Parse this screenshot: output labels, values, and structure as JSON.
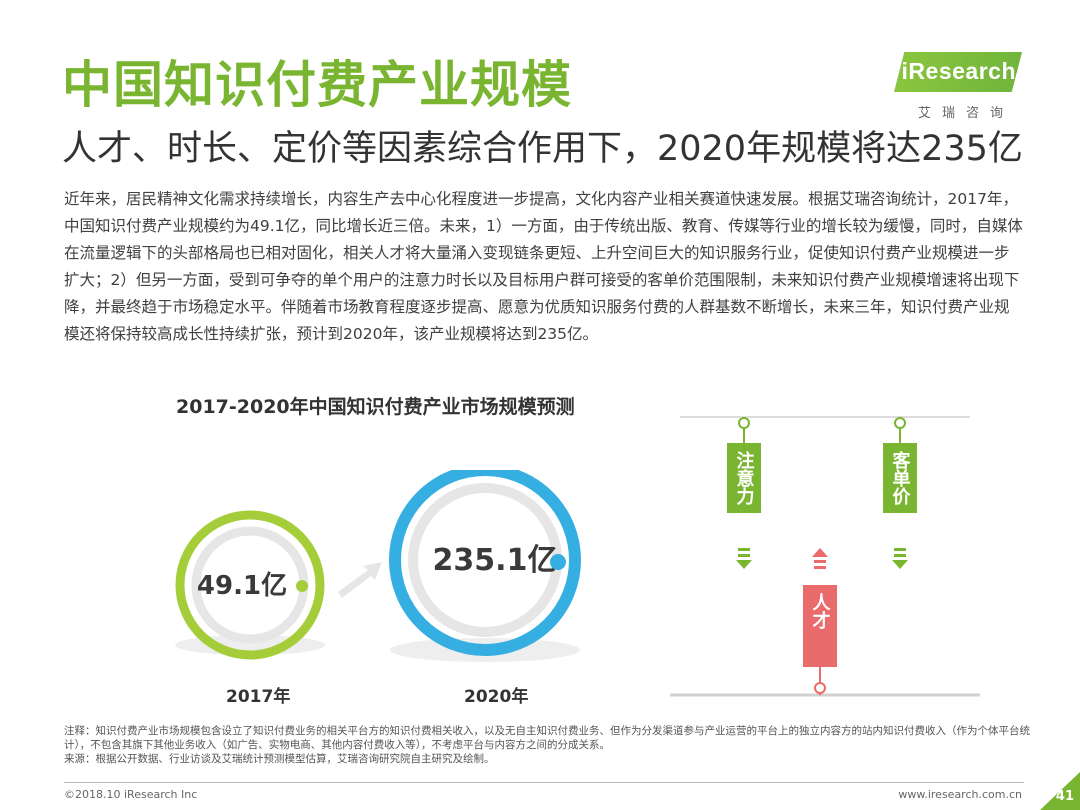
{
  "header": {
    "title": "中国知识付费产业规模",
    "subtitle": "人才、时长、定价等因素综合作用下，2020年规模将达235亿"
  },
  "logo": {
    "brand": "iResearch",
    "cn": "艾瑞咨询"
  },
  "intro": "近年来，居民精神文化需求持续增长，内容生产去中心化程度进一步提高，文化内容产业相关赛道快速发展。根据艾瑞咨询统计，2017年，中国知识付费产业规模约为49.1亿，同比增长近三倍。未来，1）一方面，由于传统出版、教育、传媒等行业的增长较为缓慢，同时，自媒体在流量逻辑下的头部格局也已相对固化，相关人才将大量涌入变现链条更短、上升空间巨大的知识服务行业，促使知识付费产业规模进一步扩大；2）但另一方面，受到可争夺的单个用户的注意力时长以及目标用户群可接受的客单价范围限制，未来知识付费产业规模增速将出现下降，并最终趋于市场稳定水平。伴随着市场教育程度逐步提高、愿意为优质知识服务付费的人群基数不断增长，未来三年，知识付费产业规模还将保持较高成长性持续扩张，预计到2020年，该产业规模将达到235亿。",
  "chart_data": {
    "type": "bubble",
    "title": "2017-2020年中国知识付费产业市场规模预测",
    "categories": [
      "2017年",
      "2020年"
    ],
    "values": [
      49.1,
      235.1
    ],
    "value_labels": [
      "49.1亿",
      "235.1亿"
    ],
    "colors": [
      "#a5cd39",
      "#35aee2"
    ]
  },
  "diagram": {
    "labels": [
      "注意力",
      "客单价",
      "人才"
    ],
    "directions": [
      "down",
      "down",
      "up"
    ],
    "colors": {
      "green": "#7ab532",
      "red": "#e96b6b"
    }
  },
  "footer": {
    "note_line1": "注释：知识付费产业市场规模包含设立了知识付费业务的相关平台方的知识付费相关收入，以及无自主知识付费业务、但作为分发渠道参与产业运营的平台上的独立内容方的站内知识付费收入（作为个体平台统计），不包含其旗下其他业务收入（如广告、实物电商、其他内容付费收入等），不考虑平台与内容方之间的分成关系。",
    "note_line2": "来源：根据公开数据、行业访谈及艾瑞统计预测模型估算，艾瑞咨询研究院自主研究及绘制。",
    "copyright": "©2018.10 iResearch Inc",
    "website": "www.iresearch.com.cn",
    "page": "41"
  }
}
